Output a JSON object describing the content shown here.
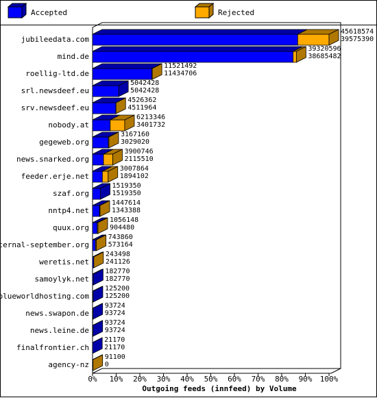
{
  "chart_data": {
    "type": "bar3d",
    "orientation": "horizontal",
    "stacked": true,
    "xlabel": "Outgoing feeds (innfeed) by Volume",
    "categories": [
      "jubileedata.com",
      "mind.de",
      "roellig-ltd.de",
      "srl.newsdeef.eu",
      "srv.newsdeef.eu",
      "nobody.at",
      "gegeweb.org",
      "news.snarked.org",
      "feeder.erje.net",
      "szaf.org",
      "nntp4.net",
      "quux.org",
      "eternal-september.org",
      "weretis.net",
      "samoylyk.net",
      "blueworldhosting.com",
      "news.swapon.de",
      "news.leine.de",
      "finalfrontier.ch",
      "agency-nz"
    ],
    "totals": [
      45618574,
      39320596,
      11521492,
      5042428,
      4526362,
      6213346,
      3167160,
      3900746,
      3007864,
      1519350,
      1447614,
      1056148,
      743860,
      243498,
      182770,
      125200,
      93724,
      93724,
      21170,
      91100
    ],
    "series": [
      {
        "name": "Accepted",
        "color": "#0000ff",
        "top_color": "#0000a8",
        "values": [
          39575390,
          38685482,
          11434706,
          5042428,
          4511964,
          3401732,
          3029020,
          2115510,
          1894102,
          1519350,
          1343388,
          904480,
          573164,
          241126,
          182770,
          125200,
          93724,
          93724,
          21170,
          0
        ]
      },
      {
        "name": "Rejected",
        "color": "#ffaa00",
        "top_color": "#b07800",
        "values": [
          6043184,
          635114,
          86786,
          0,
          14398,
          2811614,
          138140,
          1785236,
          1113762,
          0,
          104226,
          151668,
          170696,
          2372,
          0,
          0,
          0,
          0,
          0,
          91100
        ]
      }
    ],
    "xlim": [
      0,
      45618574
    ],
    "xticks": [
      {
        "value": 0,
        "label": "0%"
      },
      {
        "value": 4561857.4,
        "label": "10%"
      },
      {
        "value": 9123714.8,
        "label": "20%"
      },
      {
        "value": 13685572.2,
        "label": "30%"
      },
      {
        "value": 18247429.6,
        "label": "40%"
      },
      {
        "value": 22809287,
        "label": "50%"
      },
      {
        "value": 27371144.4,
        "label": "60%"
      },
      {
        "value": 31933001.8,
        "label": "70%"
      },
      {
        "value": 36494859.2,
        "label": "80%"
      },
      {
        "value": 41056716.6,
        "label": "90%"
      },
      {
        "value": 45618574,
        "label": "100%"
      }
    ]
  }
}
